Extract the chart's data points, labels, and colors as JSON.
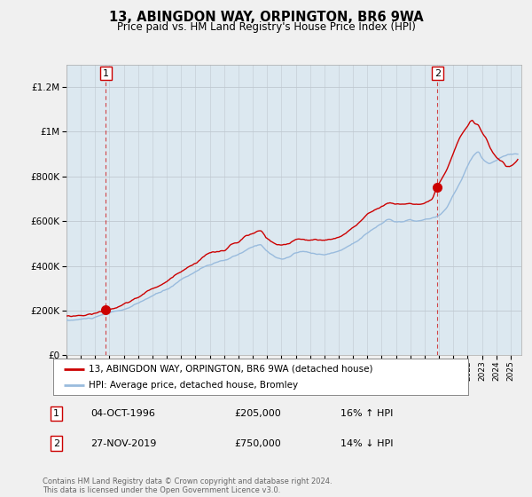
{
  "title": "13, ABINGDON WAY, ORPINGTON, BR6 9WA",
  "subtitle": "Price paid vs. HM Land Registry's House Price Index (HPI)",
  "legend_line1": "13, ABINGDON WAY, ORPINGTON, BR6 9WA (detached house)",
  "legend_line2": "HPI: Average price, detached house, Bromley",
  "annotation1_label": "1",
  "annotation1_date": "04-OCT-1996",
  "annotation1_price": "£205,000",
  "annotation1_hpi": "16% ↑ HPI",
  "annotation2_label": "2",
  "annotation2_date": "27-NOV-2019",
  "annotation2_price": "£750,000",
  "annotation2_hpi": "14% ↓ HPI",
  "footnote": "Contains HM Land Registry data © Crown copyright and database right 2024.\nThis data is licensed under the Open Government Licence v3.0.",
  "price_color": "#cc0000",
  "hpi_color": "#99bbdd",
  "annotation_color": "#cc0000",
  "background_color": "#f0f0f0",
  "plot_bg_color": "#dce8f0",
  "ylim": [
    0,
    1300000
  ],
  "yticks": [
    0,
    200000,
    400000,
    600000,
    800000,
    1000000,
    1200000
  ],
  "xlim_start": 1994.25,
  "xlim_end": 2025.75,
  "sale1_x": 1996.75,
  "sale1_y": 205000,
  "sale2_x": 2019.9,
  "sale2_y": 750000
}
